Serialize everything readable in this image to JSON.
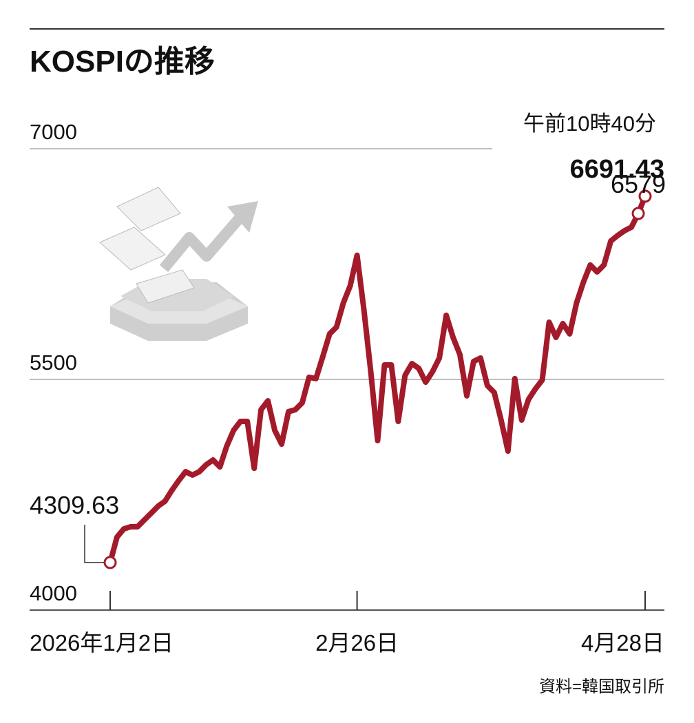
{
  "chart_data": {
    "type": "line",
    "title": "KOSPIの推移",
    "categories": [
      "2026年1月2日",
      null,
      null,
      null,
      null,
      null,
      null,
      null,
      null,
      null,
      null,
      null,
      null,
      null,
      null,
      null,
      null,
      null,
      null,
      null,
      null,
      null,
      null,
      null,
      null,
      null,
      null,
      null,
      null,
      null,
      null,
      null,
      null,
      null,
      null,
      null,
      "2月26日",
      null,
      null,
      null,
      null,
      null,
      null,
      null,
      null,
      null,
      null,
      null,
      null,
      null,
      null,
      null,
      null,
      null,
      null,
      null,
      null,
      null,
      null,
      null,
      null,
      null,
      null,
      null,
      null,
      null,
      null,
      null,
      null,
      null,
      null,
      null,
      null,
      null,
      null,
      null,
      null,
      null,
      "4月28日"
    ],
    "values": [
      4309.63,
      4475,
      4528,
      4542,
      4542,
      4587,
      4631,
      4676,
      4708,
      4779,
      4842,
      4900,
      4878,
      4900,
      4945,
      4976,
      4931,
      5066,
      5169,
      5227,
      5227,
      4922,
      5303,
      5361,
      5169,
      5079,
      5290,
      5303,
      5348,
      5514,
      5505,
      5648,
      5796,
      5840,
      5997,
      6109,
      6307.27,
      5953,
      5550,
      5102,
      5594,
      5594,
      5227,
      5527,
      5603,
      5572,
      5482,
      5550,
      5639,
      5917,
      5773,
      5661,
      5393,
      5617,
      5639,
      5460,
      5415,
      5236,
      5034,
      5505,
      5236,
      5370,
      5438,
      5496,
      5872,
      5773,
      5863,
      5796,
      5997,
      6132,
      6244,
      6199,
      6244,
      6400,
      6436,
      6467,
      6490,
      6579,
      6691.43
    ],
    "color": "#a31b2b",
    "ylim": [
      4000,
      7000
    ],
    "yticks": [
      4000,
      5500,
      7000
    ],
    "grid": true,
    "time_note": "午前10時40分",
    "source": "資料=韓国取引所"
  }
}
